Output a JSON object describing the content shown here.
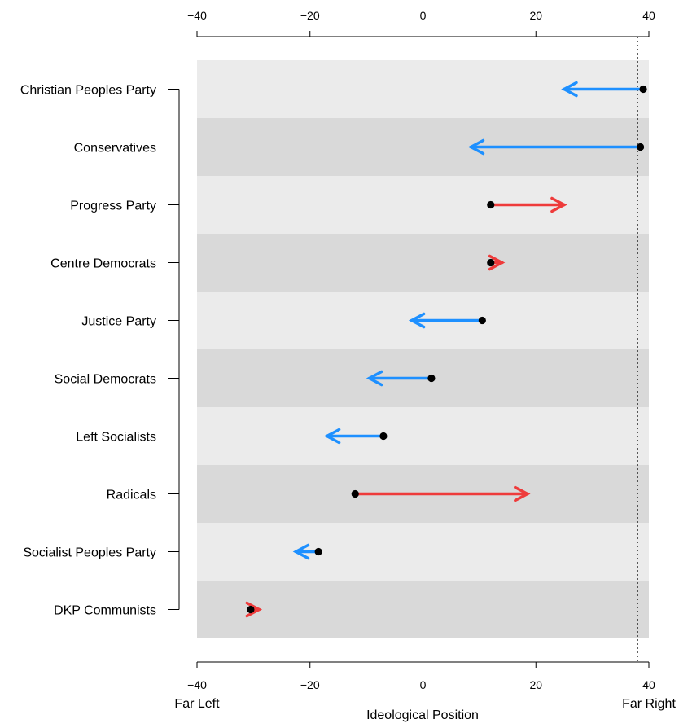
{
  "chart_data": {
    "type": "arrow",
    "xlabel": "Ideological Position",
    "xlim": [
      -40,
      40
    ],
    "xticks": [
      -40,
      -20,
      0,
      20,
      40
    ],
    "x_end_labels": {
      "left": "Far Left",
      "right": "Far Right"
    },
    "reference_line_x": 38,
    "parties": [
      {
        "name": "Christian Peoples Party",
        "start": 39,
        "end": 25,
        "direction": "left"
      },
      {
        "name": "Conservatives",
        "start": 38.5,
        "end": 8.5,
        "direction": "left"
      },
      {
        "name": "Progress Party",
        "start": 12,
        "end": 25,
        "direction": "right"
      },
      {
        "name": "Centre Democrats",
        "start": 12,
        "end": 14,
        "direction": "right"
      },
      {
        "name": "Justice Party",
        "start": 10.5,
        "end": -2,
        "direction": "left"
      },
      {
        "name": "Social Democrats",
        "start": 1.5,
        "end": -9.5,
        "direction": "left"
      },
      {
        "name": "Left Socialists",
        "start": -7,
        "end": -17,
        "direction": "left"
      },
      {
        "name": "Radicals",
        "start": -12,
        "end": 18.5,
        "direction": "right"
      },
      {
        "name": "Socialist Peoples Party",
        "start": -18.5,
        "end": -22.5,
        "direction": "left"
      },
      {
        "name": "DKP Communists",
        "start": -30.5,
        "end": -29,
        "direction": "right"
      }
    ]
  },
  "colors": {
    "left_shift": "#1e90ff",
    "right_shift": "#ee3b3b",
    "band_light": "#ebebeb",
    "band_dark": "#d9d9d9",
    "point": "#000000"
  }
}
